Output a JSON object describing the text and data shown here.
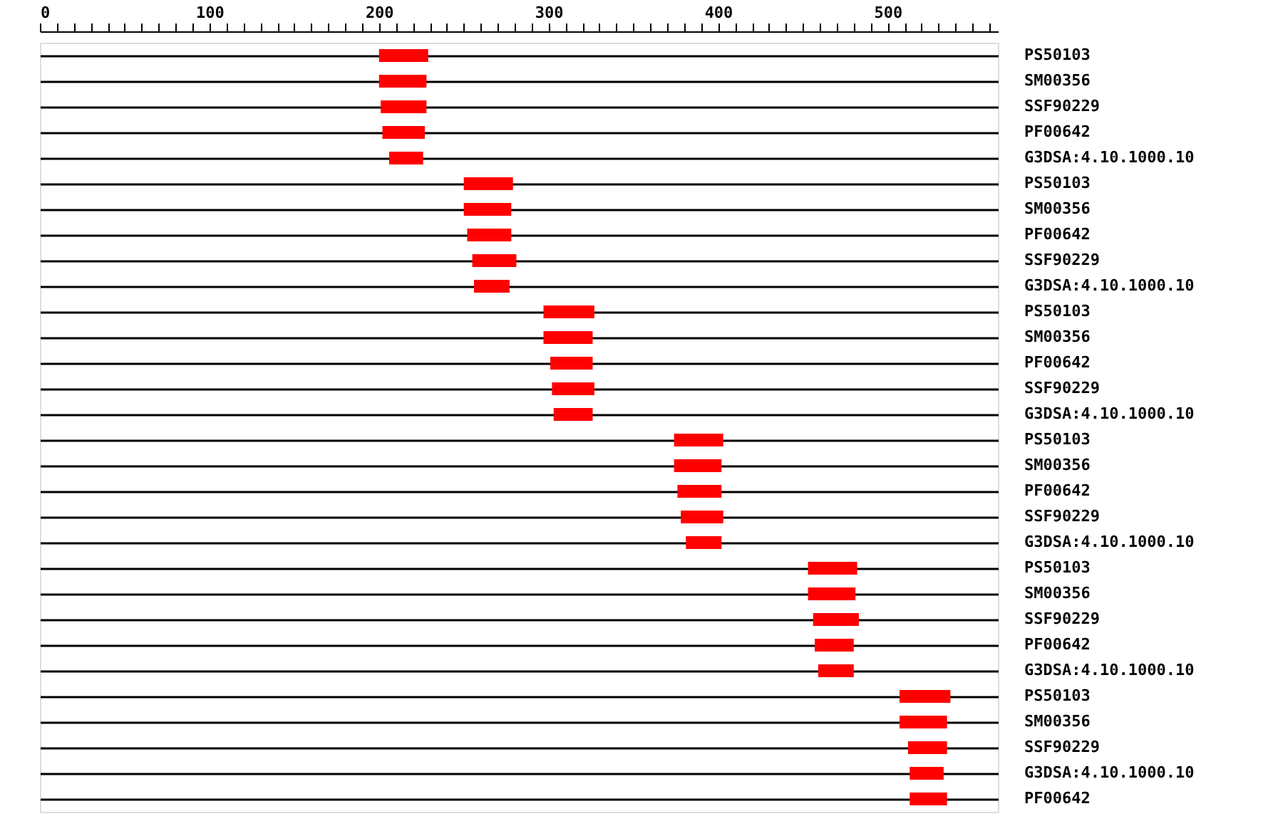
{
  "chart_data": {
    "type": "bar",
    "orientation": "horizontal",
    "categories": [
      "PS50103",
      "SM00356",
      "SSF90229",
      "PF00642",
      "G3DSA:4.10.1000.10",
      "PS50103",
      "SM00356",
      "PF00642",
      "SSF90229",
      "G3DSA:4.10.1000.10",
      "PS50103",
      "SM00356",
      "PF00642",
      "SSF90229",
      "G3DSA:4.10.1000.10",
      "PS50103",
      "SM00356",
      "PF00642",
      "SSF90229",
      "G3DSA:4.10.1000.10",
      "PS50103",
      "SM00356",
      "SSF90229",
      "PF00642",
      "G3DSA:4.10.1000.10",
      "PS50103",
      "SM00356",
      "SSF90229",
      "G3DSA:4.10.1000.10",
      "PF00642"
    ],
    "base": [
      200,
      200,
      201,
      202,
      206,
      250,
      250,
      252,
      255,
      256,
      297,
      297,
      301,
      302,
      303,
      374,
      374,
      376,
      378,
      381,
      453,
      453,
      456,
      457,
      459,
      507,
      507,
      512,
      513,
      513
    ],
    "values": [
      29,
      28,
      27,
      25,
      20,
      29,
      28,
      26,
      26,
      21,
      30,
      29,
      25,
      25,
      23,
      29,
      28,
      26,
      25,
      21,
      29,
      28,
      27,
      23,
      21,
      30,
      28,
      23,
      20,
      22
    ],
    "color": "#ff0000",
    "xlim": [
      0,
      565
    ],
    "xticks": [
      0,
      {
        "value": 10,
        "label": null
      },
      {
        "value": 20,
        "label": null
      },
      {
        "value": 30,
        "label": null
      },
      {
        "value": 40,
        "label": null
      },
      {
        "value": 50,
        "label": null
      },
      {
        "value": 60,
        "label": null
      },
      {
        "value": 70,
        "label": null
      },
      {
        "value": 80,
        "label": null
      },
      {
        "value": 90,
        "label": null
      },
      100,
      {
        "value": 110,
        "label": null
      },
      {
        "value": 120,
        "label": null
      },
      {
        "value": 130,
        "label": null
      },
      {
        "value": 140,
        "label": null
      },
      {
        "value": 150,
        "label": null
      },
      {
        "value": 160,
        "label": null
      },
      {
        "value": 170,
        "label": null
      },
      {
        "value": 180,
        "label": null
      },
      {
        "value": 190,
        "label": null
      },
      200,
      {
        "value": 210,
        "label": null
      },
      {
        "value": 220,
        "label": null
      },
      {
        "value": 230,
        "label": null
      },
      {
        "value": 240,
        "label": null
      },
      {
        "value": 250,
        "label": null
      },
      {
        "value": 260,
        "label": null
      },
      {
        "value": 270,
        "label": null
      },
      {
        "value": 280,
        "label": null
      },
      {
        "value": 290,
        "label": null
      },
      300,
      {
        "value": 310,
        "label": null
      },
      {
        "value": 320,
        "label": null
      },
      {
        "value": 330,
        "label": null
      },
      {
        "value": 340,
        "label": null
      },
      {
        "value": 350,
        "label": null
      },
      {
        "value": 360,
        "label": null
      },
      {
        "value": 370,
        "label": null
      },
      {
        "value": 380,
        "label": null
      },
      {
        "value": 390,
        "label": null
      },
      400,
      {
        "value": 410,
        "label": null
      },
      {
        "value": 420,
        "label": null
      },
      {
        "value": 430,
        "label": null
      },
      {
        "value": 440,
        "label": null
      },
      {
        "value": 450,
        "label": null
      },
      {
        "value": 460,
        "label": null
      },
      {
        "value": 470,
        "label": null
      },
      {
        "value": 480,
        "label": null
      },
      {
        "value": 490,
        "label": null
      },
      500,
      {
        "value": 510,
        "label": null
      },
      {
        "value": 520,
        "label": null
      },
      {
        "value": 530,
        "label": null
      },
      {
        "value": 540,
        "label": null
      },
      {
        "value": 550,
        "label": null
      },
      {
        "value": 560,
        "label": null
      }
    ],
    "grid": "y"
  }
}
